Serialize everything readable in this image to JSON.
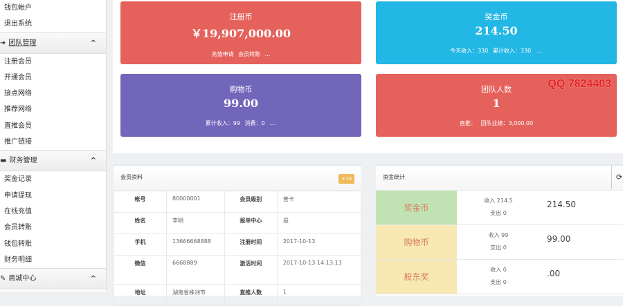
{
  "sidebar": {
    "top_items": [
      "钱包帐户",
      "退出系统"
    ],
    "groups": [
      {
        "label": "团队管理",
        "icon": "arrow-right-icon",
        "items": [
          "注册会员",
          "开通会员",
          "接点网络",
          "推荐网络",
          "直推会员",
          "推广链接"
        ]
      },
      {
        "label": "财务管理",
        "icon": "folder-icon",
        "items": [
          "奖金记录",
          "申请提现",
          "在线充值",
          "会员转账",
          "钱包转账",
          "财务明细"
        ]
      },
      {
        "label": "商城中心",
        "icon": "tools-icon",
        "items": []
      }
    ]
  },
  "cards": [
    {
      "title": "注册币",
      "value": "￥19,907,000.00",
      "sub": "充值申请  会员转账  ...",
      "color": "#e5625c"
    },
    {
      "title": "奖金币",
      "value": "214.50",
      "sub": "今天收入：330  累计收入：330  ....",
      "color": "#23b7e5"
    },
    {
      "title": "购物币",
      "value": "99.00",
      "sub": "累计收入：99   消费：0  ....",
      "color": "#7266ba"
    },
    {
      "title": "团队人数",
      "value": "1",
      "sub": "直推：  团队业绩：3,000.00",
      "color": "#e5625c"
    }
  ],
  "watermark": "QQ 7824403",
  "member": {
    "title": "会员资料",
    "badge": "+10",
    "rows": [
      [
        "帐号",
        "80000001",
        "会员级别",
        "普卡"
      ],
      [
        "姓名",
        "李明",
        "报单中心",
        "是"
      ],
      [
        "手机",
        "13666668888",
        "注册时间",
        "2017-10-13"
      ],
      [
        "微信",
        "6668889",
        "激活时间",
        "2017-10-13 14:13:13"
      ],
      [
        "地址",
        "湖南省株洲市",
        "直推人数",
        "1"
      ]
    ]
  },
  "funds": {
    "title": "资金统计",
    "rows": [
      {
        "name": "奖金币",
        "income": "收入 214.5",
        "expense": "支出 0",
        "amount": "214.50",
        "color": "#c1e2b3"
      },
      {
        "name": "购物币",
        "income": "收入 99",
        "expense": "支出 0",
        "amount": "99.00",
        "color": "#f8e9b4"
      },
      {
        "name": "股东奖",
        "income": "收入 0",
        "expense": "支出 0",
        "amount": ".00",
        "color": "#f8e9b4"
      }
    ]
  }
}
